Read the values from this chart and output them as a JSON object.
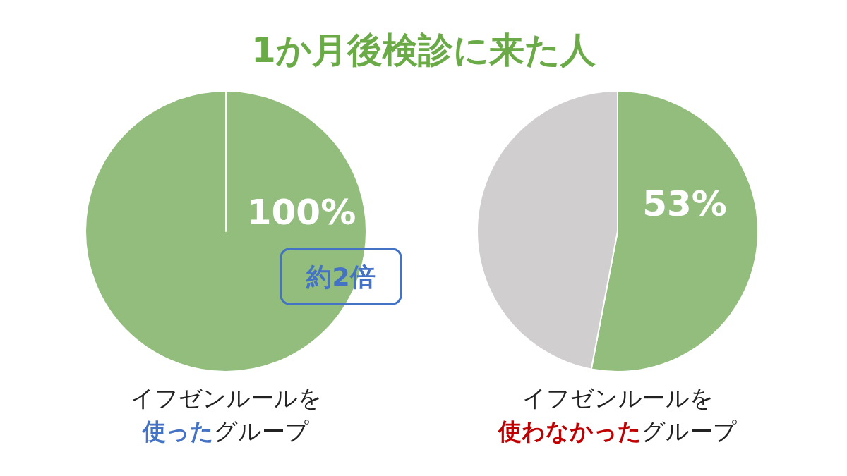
{
  "chart_data": [
    {
      "type": "pie",
      "title": "1か月後検診に来た人",
      "categories": [
        null
      ],
      "values": [
        100
      ],
      "colors": [
        "#92bd7c"
      ],
      "value_labels": [
        "100%"
      ],
      "xlabel": "イフゼンルールを**使った**グループ",
      "annotations": [
        "約2倍"
      ]
    },
    {
      "type": "pie",
      "categories": [
        null,
        null
      ],
      "values": [
        53,
        47
      ],
      "colors": [
        "#92bd7c",
        "#d0cece"
      ],
      "value_labels": [
        "53%",
        null
      ],
      "xlabel": "イフゼンルールを**使わなかった**グループ"
    }
  ]
}
